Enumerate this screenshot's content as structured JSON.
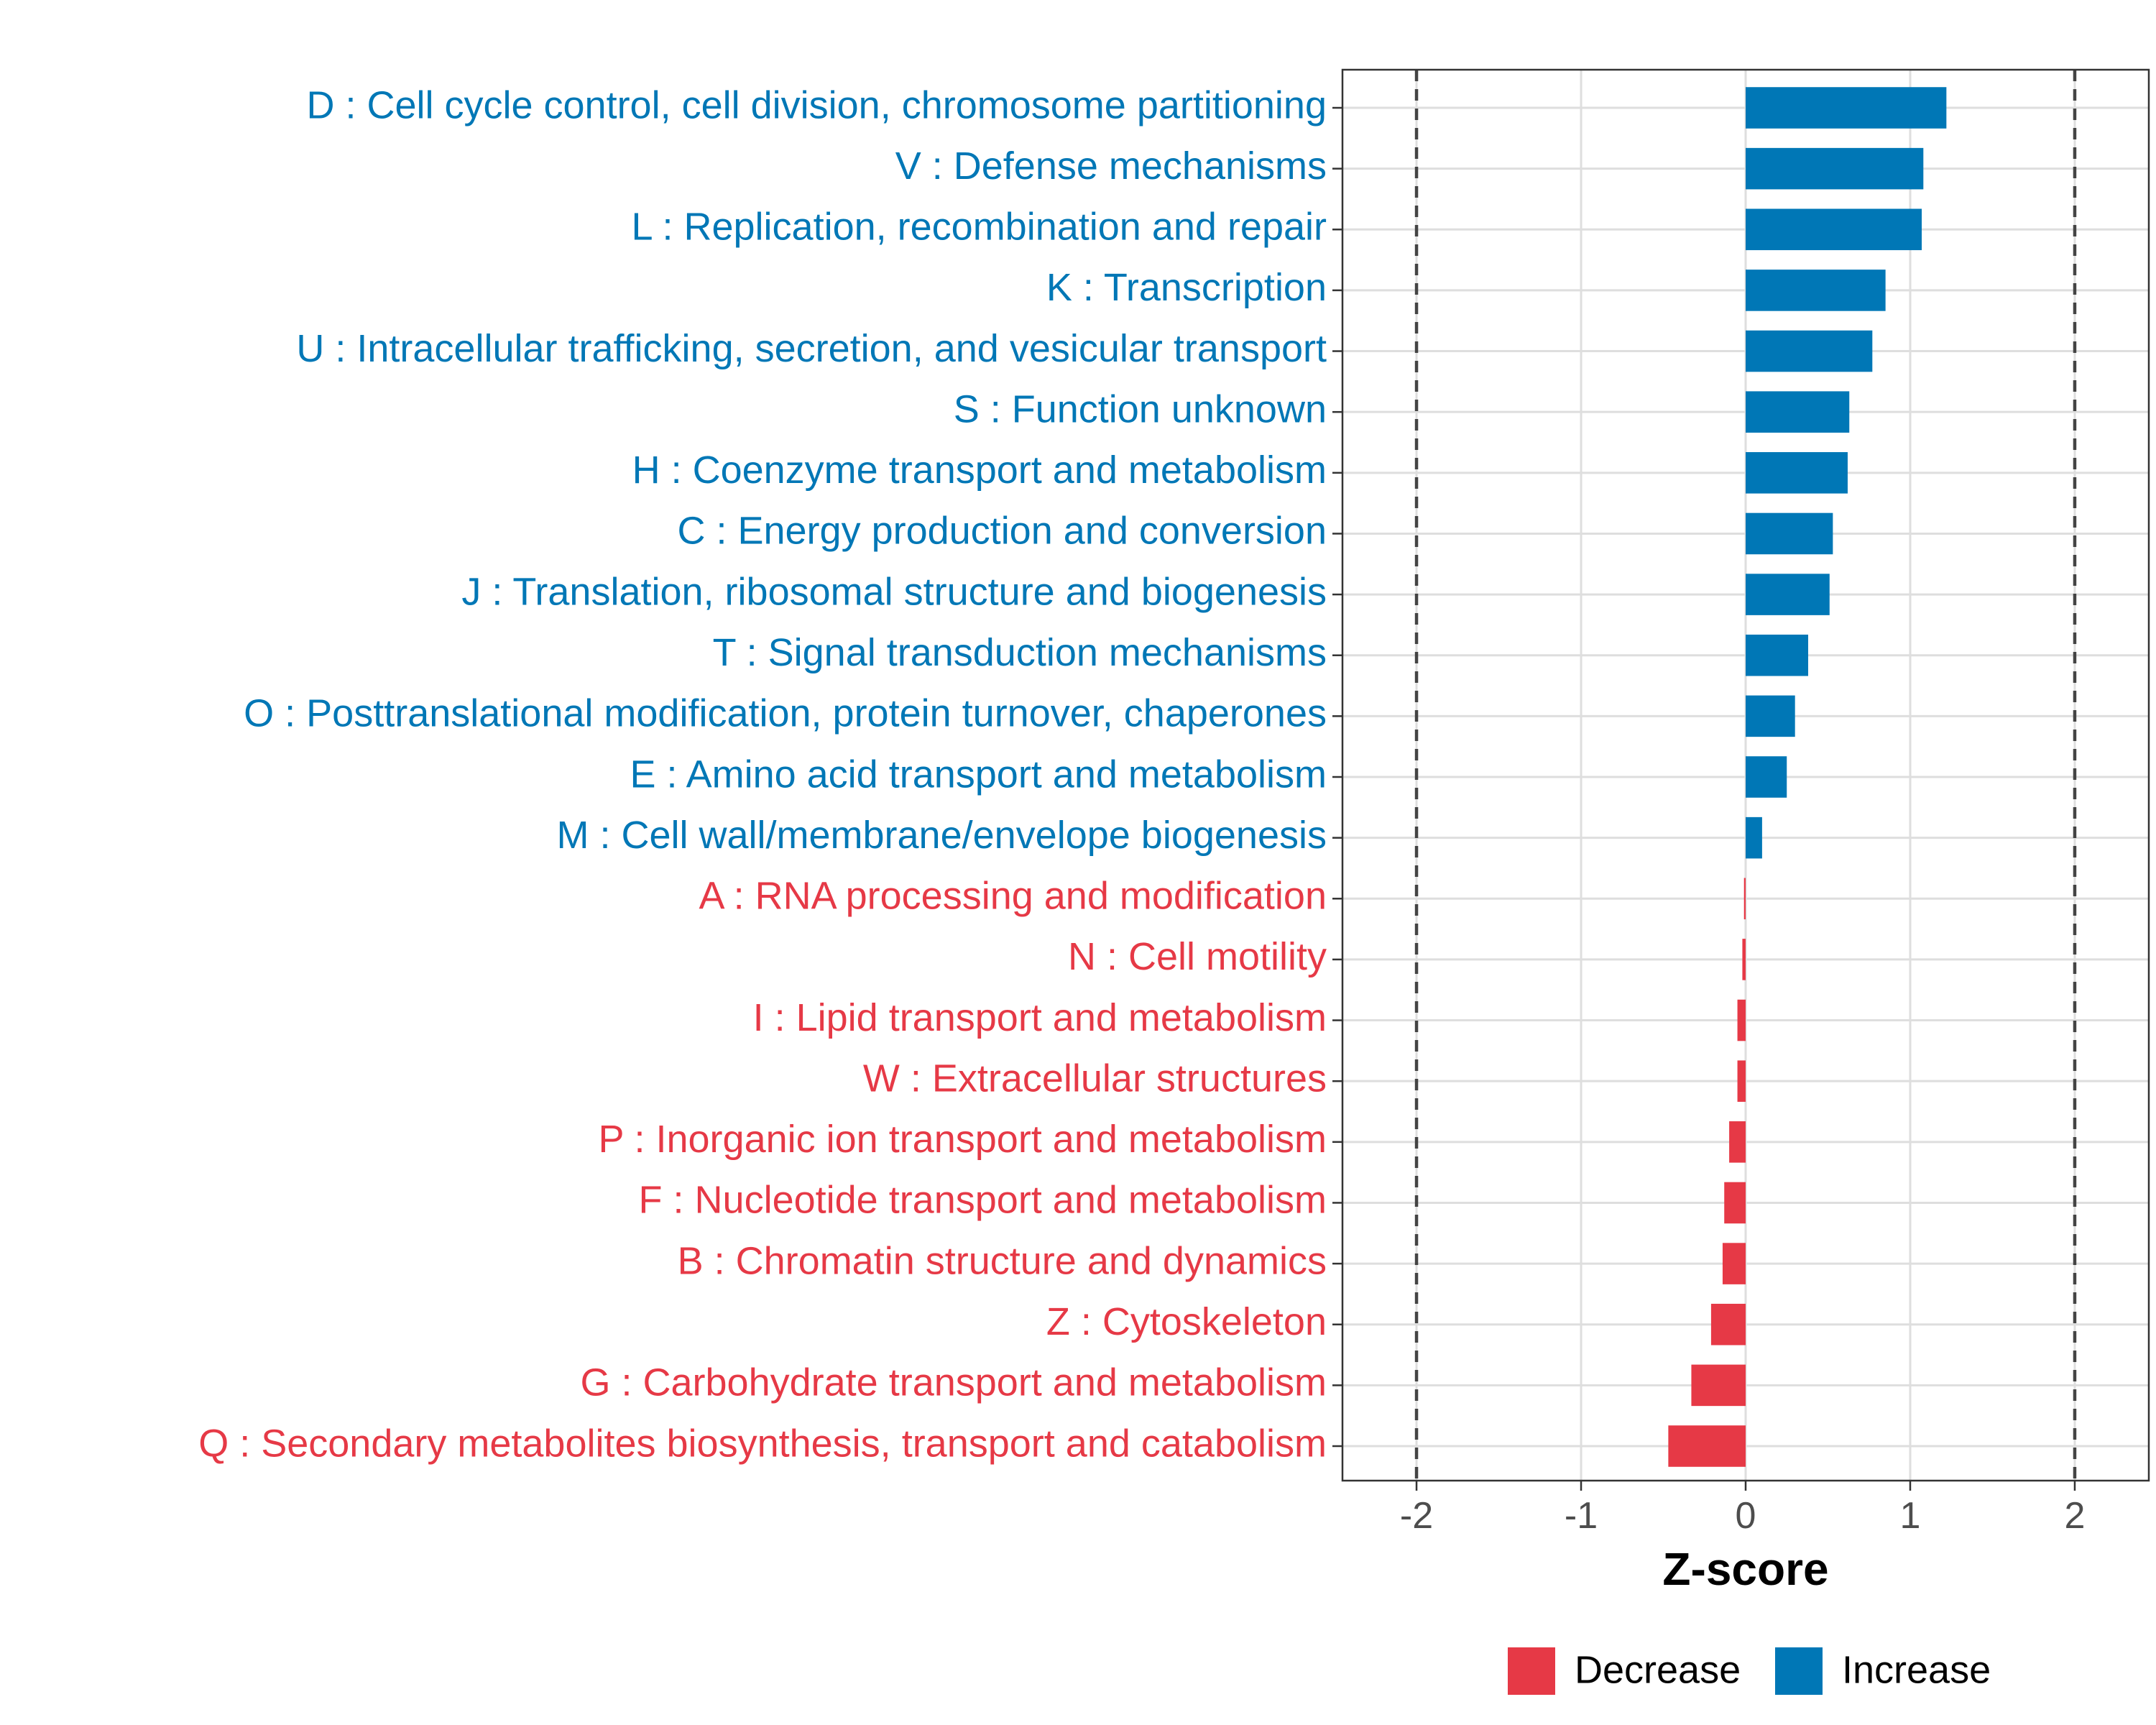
{
  "chart_data": {
    "type": "bar",
    "orientation": "horizontal",
    "title": "",
    "xlabel": "Z-score",
    "ylabel": "",
    "xlim": [
      -2.45,
      2.45
    ],
    "xticks": [
      -2,
      -1,
      0,
      1,
      2
    ],
    "tick_labels": [
      "-2",
      "-1",
      "0",
      "1",
      "2"
    ],
    "threshold_lines": [
      -2,
      2
    ],
    "grid": true,
    "categories": [
      "D : Cell cycle control, cell division, chromosome partitioning",
      "V : Defense mechanisms",
      "L : Replication, recombination and repair",
      "K : Transcription",
      "U : Intracellular trafficking, secretion, and vesicular transport",
      "S : Function unknown",
      "H : Coenzyme transport and metabolism",
      "C : Energy production and conversion",
      "J : Translation, ribosomal structure and biogenesis",
      "T : Signal transduction mechanisms",
      "O : Posttranslational modification, protein turnover, chaperones",
      "E : Amino acid transport and metabolism",
      "M : Cell wall/membrane/envelope biogenesis",
      "A : RNA processing and modification",
      "N : Cell motility",
      "I : Lipid transport and metabolism",
      "W : Extracellular structures",
      "P : Inorganic ion transport and metabolism",
      "F : Nucleotide transport and metabolism",
      "B : Chromatin structure and dynamics",
      "Z : Cytoskeleton",
      "G : Carbohydrate transport and metabolism",
      "Q : Secondary metabolites biosynthesis, transport and catabolism"
    ],
    "values": [
      1.22,
      1.08,
      1.07,
      0.85,
      0.77,
      0.63,
      0.62,
      0.53,
      0.51,
      0.38,
      0.3,
      0.25,
      0.1,
      -0.01,
      -0.02,
      -0.05,
      -0.05,
      -0.1,
      -0.13,
      -0.14,
      -0.21,
      -0.33,
      -0.47
    ],
    "groups": [
      "Increase",
      "Increase",
      "Increase",
      "Increase",
      "Increase",
      "Increase",
      "Increase",
      "Increase",
      "Increase",
      "Increase",
      "Increase",
      "Increase",
      "Increase",
      "Decrease",
      "Decrease",
      "Decrease",
      "Decrease",
      "Decrease",
      "Decrease",
      "Decrease",
      "Decrease",
      "Decrease",
      "Decrease"
    ],
    "legend": {
      "position": "bottom",
      "entries": [
        {
          "label": "Decrease",
          "color": "#E63946"
        },
        {
          "label": "Increase",
          "color": "#0077B6"
        }
      ]
    }
  }
}
